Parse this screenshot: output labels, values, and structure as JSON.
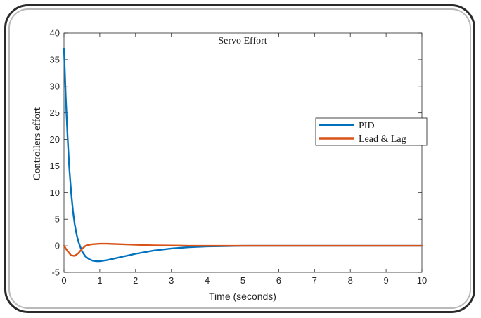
{
  "chart_data": {
    "type": "line",
    "title": "Servo Effort",
    "xlabel": "Time (seconds)",
    "ylabel": "Controllers effort",
    "xlim": [
      0,
      10
    ],
    "ylim": [
      -5,
      40
    ],
    "x_ticks": [
      0,
      1,
      2,
      3,
      4,
      5,
      6,
      7,
      8,
      9,
      10
    ],
    "y_ticks": [
      -5,
      0,
      5,
      10,
      15,
      20,
      25,
      30,
      35,
      40
    ],
    "grid": false,
    "legend_position": "center-right",
    "series": [
      {
        "name": "PID",
        "color": "#0072BD",
        "x": [
          0,
          0.05,
          0.1,
          0.15,
          0.2,
          0.25,
          0.3,
          0.35,
          0.4,
          0.5,
          0.6,
          0.7,
          0.8,
          0.9,
          1.0,
          1.1,
          1.2,
          1.4,
          1.6,
          1.8,
          2.0,
          2.5,
          3.0,
          3.5,
          4.0,
          4.5,
          5.0,
          6.0,
          7.0,
          8.0,
          9.0,
          10.0
        ],
        "y": [
          37,
          28,
          20.5,
          14.5,
          10,
          6.6,
          4.0,
          2.2,
          0.8,
          -1.0,
          -2.0,
          -2.5,
          -2.8,
          -2.9,
          -2.9,
          -2.8,
          -2.7,
          -2.4,
          -2.1,
          -1.8,
          -1.5,
          -0.9,
          -0.5,
          -0.25,
          -0.1,
          -0.05,
          0,
          0,
          0,
          0,
          0,
          0
        ]
      },
      {
        "name": "Lead & Lag",
        "color": "#D95319",
        "x": [
          0,
          0.1,
          0.2,
          0.3,
          0.4,
          0.5,
          0.6,
          0.7,
          0.8,
          1.0,
          1.2,
          1.4,
          1.6,
          1.8,
          2.0,
          2.5,
          3.0,
          3.5,
          4.0,
          5.0,
          6.0,
          7.0,
          8.0,
          9.0,
          10.0
        ],
        "y": [
          0,
          -1.0,
          -1.8,
          -1.9,
          -1.4,
          -0.6,
          0.0,
          0.2,
          0.3,
          0.4,
          0.4,
          0.35,
          0.3,
          0.25,
          0.2,
          0.1,
          0.05,
          0,
          0,
          0,
          0,
          0,
          0,
          0,
          0
        ]
      }
    ]
  }
}
